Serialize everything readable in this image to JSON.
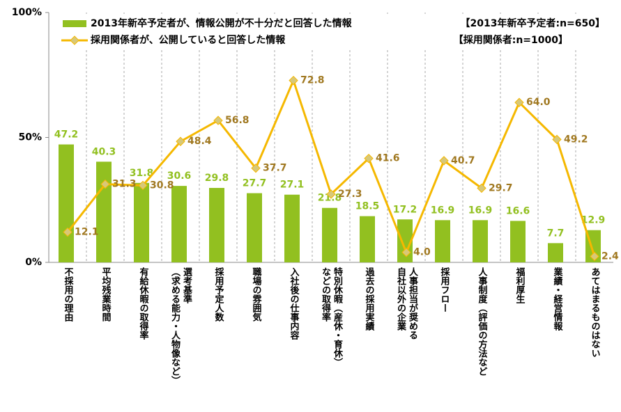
{
  "chart_data": {
    "type": "bar_line",
    "categories": [
      "不採用の理由",
      "平均残業時間",
      "有給休暇の取得率",
      "選考基準\n（求める能力・人物像など）",
      "採用予定人数",
      "職場の雰囲気",
      "入社後の仕事内容",
      "特別休暇（産休・育休）\nなどの取得率",
      "過去の採用実績",
      "人事担当が奨める\n自社以外の企業",
      "採用フロー",
      "人事制度（評価の方法など",
      "福利厚生",
      "業績・経営情報",
      "あてはまるものはない"
    ],
    "series": [
      {
        "name": "2013年新卒予定者が、情報公開が不十分だと回答した情報",
        "kind": "bar",
        "color": "#92c020",
        "label_color": "#92c020",
        "values": [
          47.2,
          40.3,
          31.8,
          30.6,
          29.8,
          27.7,
          27.1,
          21.8,
          18.5,
          17.2,
          16.9,
          16.9,
          16.6,
          7.7,
          12.9
        ],
        "value_labels": [
          "47.2",
          "40.3",
          "31.8",
          "30.6",
          "29.8",
          "27.7",
          "27.1",
          "21.8",
          "18.5",
          "17.2",
          "16.9",
          "16.9",
          "16.6",
          "7.7",
          "12.9"
        ]
      },
      {
        "name": "採用関係者が、公開していると回答した情報",
        "kind": "line",
        "color": "#f5b800",
        "label_color": "#a07820",
        "values": [
          12.1,
          31.3,
          30.8,
          48.4,
          56.8,
          37.7,
          72.8,
          27.3,
          41.6,
          4.0,
          40.7,
          29.7,
          64.0,
          49.2,
          2.4
        ],
        "value_labels": [
          "12.1",
          "31.3",
          "30.8",
          "48.4",
          "56.8",
          "37.7",
          "72.8",
          "27.3",
          "41.6",
          "4.0",
          "40.7",
          "29.7",
          "64.0",
          "49.2",
          "2.4"
        ]
      }
    ],
    "annotations": [
      "【2013年新卒予定者:n=650】",
      "【採用関係者:n=1000】"
    ],
    "ylim": [
      0,
      100
    ],
    "yticks": [
      {
        "value": 0,
        "label": "0%"
      },
      {
        "value": 50,
        "label": "50%"
      },
      {
        "value": 100,
        "label": "100%"
      }
    ],
    "grid": true
  }
}
